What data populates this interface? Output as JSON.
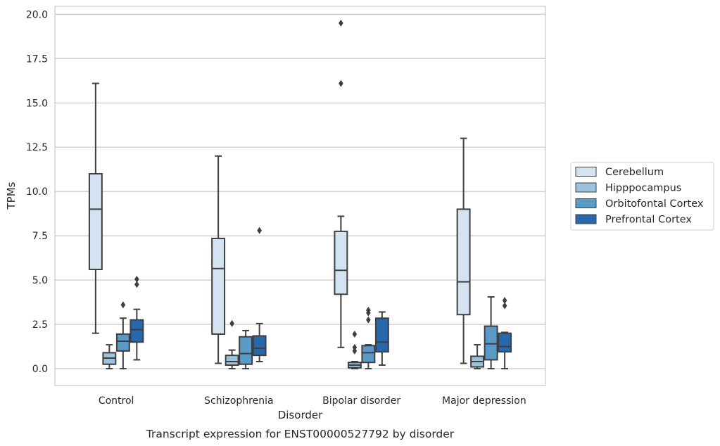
{
  "chart_data": {
    "type": "box",
    "title": "",
    "caption": "Transcript expression for ENST00000527792 by disorder",
    "xlabel": "Disorder",
    "ylabel": "TPMs",
    "ylim": [
      -0.95,
      20.45
    ],
    "yticks": [
      "0.0",
      "2.5",
      "5.0",
      "7.5",
      "10.0",
      "12.5",
      "15.0",
      "17.5",
      "20.0"
    ],
    "ytick_values": [
      0,
      2.5,
      5,
      7.5,
      10,
      12.5,
      15,
      17.5,
      20
    ],
    "grid": "horizontal",
    "legend_position": "right",
    "categories": [
      "Control",
      "Schizophrenia",
      "Bipolar disorder",
      "Major depression"
    ],
    "series": [
      {
        "name": "Cerebellum",
        "color": "#d4e3f2",
        "boxes": [
          {
            "min": 2.0,
            "q1": 5.6,
            "median": 9.0,
            "q3": 11.0,
            "max": 16.1,
            "outliers": []
          },
          {
            "min": 0.3,
            "q1": 1.95,
            "median": 5.65,
            "q3": 7.35,
            "max": 12.0,
            "outliers": []
          },
          {
            "min": 1.2,
            "q1": 4.2,
            "median": 5.55,
            "q3": 7.75,
            "max": 8.6,
            "outliers": [
              16.1,
              19.5
            ]
          },
          {
            "min": 0.3,
            "q1": 3.05,
            "median": 4.9,
            "q3": 9.0,
            "max": 13.0,
            "outliers": []
          }
        ]
      },
      {
        "name": "Hipppocampus",
        "color": "#9ac3de",
        "boxes": [
          {
            "min": 0.0,
            "q1": 0.25,
            "median": 0.6,
            "q3": 0.9,
            "max": 1.35,
            "outliers": []
          },
          {
            "min": 0.0,
            "q1": 0.2,
            "median": 0.4,
            "q3": 0.75,
            "max": 1.05,
            "outliers": [
              2.55
            ]
          },
          {
            "min": 0.0,
            "q1": 0.05,
            "median": 0.2,
            "q3": 0.35,
            "max": 0.4,
            "outliers": [
              1.0,
              1.2,
              1.95
            ]
          },
          {
            "min": 0.0,
            "q1": 0.1,
            "median": 0.4,
            "q3": 0.7,
            "max": 1.35,
            "outliers": []
          }
        ]
      },
      {
        "name": "Orbitofontal Cortex",
        "color": "#5a9ac9",
        "boxes": [
          {
            "min": 0.0,
            "q1": 1.0,
            "median": 1.55,
            "q3": 1.95,
            "max": 2.85,
            "outliers": [
              3.6
            ]
          },
          {
            "min": 0.0,
            "q1": 0.25,
            "median": 0.85,
            "q3": 1.8,
            "max": 2.15,
            "outliers": []
          },
          {
            "min": 0.0,
            "q1": 0.35,
            "median": 0.9,
            "q3": 1.3,
            "max": 1.35,
            "outliers": [
              2.75,
              3.15,
              3.3
            ]
          },
          {
            "min": 0.0,
            "q1": 0.5,
            "median": 1.4,
            "q3": 2.4,
            "max": 4.05,
            "outliers": []
          }
        ]
      },
      {
        "name": "Prefrontal Cortex",
        "color": "#2767ab",
        "boxes": [
          {
            "min": 0.5,
            "q1": 1.5,
            "median": 2.2,
            "q3": 2.75,
            "max": 3.35,
            "outliers": [
              4.75,
              5.05
            ]
          },
          {
            "min": 0.4,
            "q1": 0.75,
            "median": 1.15,
            "q3": 1.85,
            "max": 2.55,
            "outliers": [
              7.8
            ]
          },
          {
            "min": 0.2,
            "q1": 0.95,
            "median": 1.5,
            "q3": 2.85,
            "max": 3.2,
            "outliers": []
          },
          {
            "min": 0.0,
            "q1": 0.95,
            "median": 1.25,
            "q3": 2.0,
            "max": 2.05,
            "outliers": [
              3.55,
              3.85
            ]
          }
        ]
      }
    ]
  }
}
